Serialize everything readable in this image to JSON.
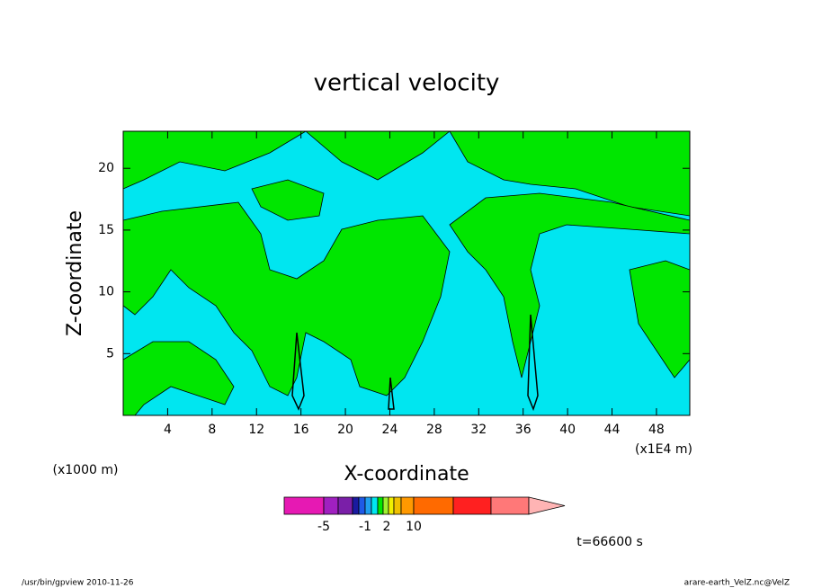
{
  "chart_data": {
    "type": "contour",
    "title": "vertical velocity",
    "x_label": "X-coordinate",
    "y_label": "Z-coordinate",
    "x_unit_left": "(x1000 m)",
    "x_unit_right": "(x1E4 m)",
    "xlim": [
      0,
      51
    ],
    "xticks": [
      4,
      8,
      12,
      16,
      20,
      24,
      28,
      32,
      36,
      40,
      44,
      48
    ],
    "ylim": [
      0,
      23
    ],
    "yticks": [
      5,
      10,
      15,
      20
    ],
    "colorbar": {
      "colors": [
        "#e619b3",
        "#a020c0",
        "#7a1fa8",
        "#1a1aa0",
        "#1f5ae6",
        "#1f9ef0",
        "#00e6f0",
        "#00e600",
        "#9ff030",
        "#f0f000",
        "#f0c000",
        "#ff9900",
        "#ff6a00",
        "#ff2020",
        "#ff7878",
        "#ffb4b4"
      ],
      "ticks": [
        -5,
        -1,
        2,
        10
      ]
    },
    "time_label": "t=66600 s",
    "footer_left": "/usr/bin/gpview  2010-11-26",
    "footer_right": "arare-earth_VelZ.nc@VelZ"
  }
}
